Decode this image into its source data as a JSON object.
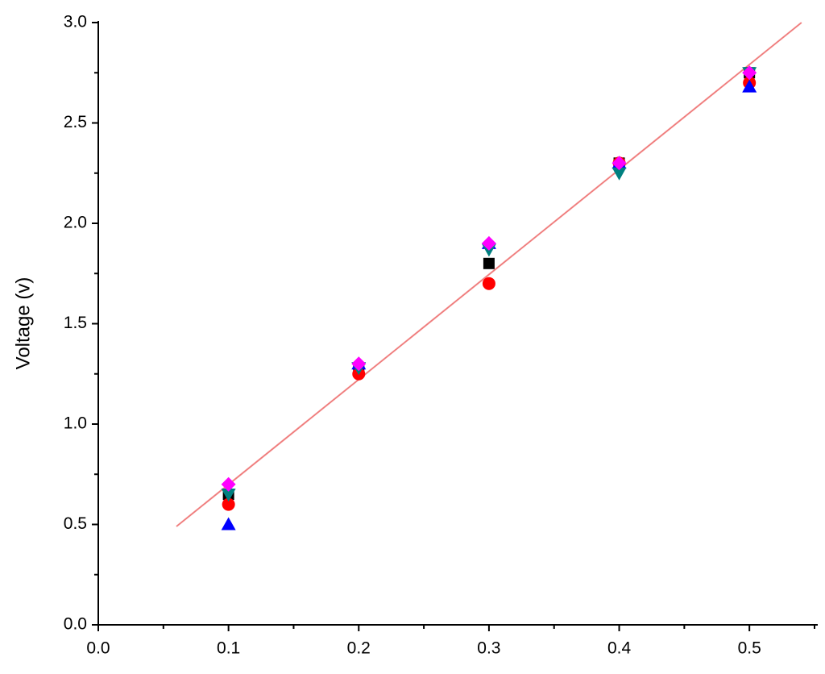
{
  "chart_data": {
    "type": "scatter",
    "y_label": "Voltage (v)",
    "xlim": [
      0,
      0.55
    ],
    "ylim": [
      0,
      3.0
    ],
    "xticks": [
      {
        "value": 0,
        "label": "0.0"
      },
      0.1,
      0.2,
      0.3,
      0.4,
      0.5
    ],
    "yticks": [
      {
        "value": 0,
        "label": "0.0"
      },
      0.5,
      {
        "value": 1,
        "label": "1.0"
      },
      1.5,
      {
        "value": 2,
        "label": "2.0"
      },
      2.5,
      {
        "value": 3,
        "label": "3.0"
      }
    ],
    "x": [
      0.1,
      0.2,
      0.3,
      0.4,
      0.5
    ],
    "series": [
      {
        "color": "#000000",
        "marker": "square",
        "values": [
          0.65,
          1.28,
          1.8,
          2.3,
          2.75
        ]
      },
      {
        "color": "#ff0000",
        "marker": "circle",
        "values": [
          0.6,
          1.25,
          1.7,
          2.3,
          2.7
        ]
      },
      {
        "color": "#0000ff",
        "marker": "triangle-up",
        "values": [
          0.5,
          1.3,
          1.9,
          2.3,
          2.68
        ]
      },
      {
        "color": "#008080",
        "marker": "triangle-down",
        "values": [
          0.65,
          1.28,
          1.87,
          2.25,
          2.75
        ]
      },
      {
        "color": "#ff00ff",
        "marker": "diamond",
        "values": [
          0.7,
          1.3,
          1.9,
          2.3,
          2.75
        ]
      }
    ],
    "fit_line": {
      "color": "#f08080",
      "x": [
        0.06,
        0.54
      ],
      "values": [
        0.49,
        3.0
      ]
    }
  }
}
